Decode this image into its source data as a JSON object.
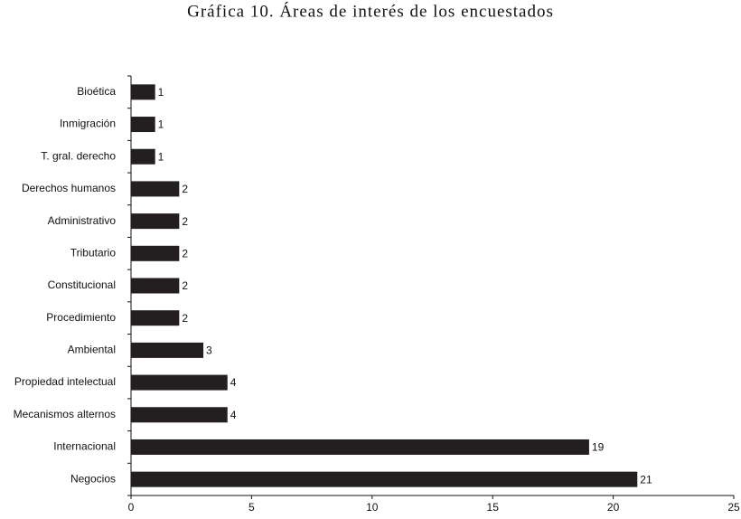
{
  "chart_data": {
    "type": "barh",
    "title": "Gráfica 10. Áreas de interés de los encuestados",
    "categories": [
      "Bioética",
      "Inmigración",
      "T. gral. derecho",
      "Derechos humanos",
      "Administrativo",
      "Tributario",
      "Constitucional",
      "Procedimiento",
      "Ambiental",
      "Propiedad intelectual",
      "Mecanismos alternos",
      "Internacional",
      "Negocios"
    ],
    "values": [
      1,
      1,
      1,
      2,
      2,
      2,
      2,
      2,
      3,
      4,
      4,
      19,
      21
    ],
    "color": "#231f20",
    "xlim": [
      0,
      25
    ],
    "xticks": [
      0,
      5,
      10,
      15,
      20,
      25
    ],
    "grid": false
  }
}
